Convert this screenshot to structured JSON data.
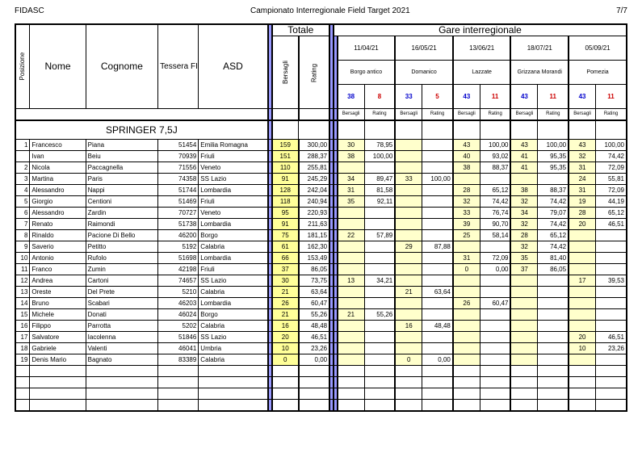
{
  "header": {
    "left": "FIDASC",
    "center": "Campionato Interregionale Field Target 2021",
    "right": "7/7"
  },
  "cols": {
    "pos": "Posizione",
    "nome": "Nome",
    "cognome": "Cognome",
    "tessera": "Tessera FIDASC",
    "asd": "ASD",
    "totale": "Totale",
    "gare": "Gare interregionale",
    "bers": "Bersagli",
    "rating": "Rating"
  },
  "events": [
    {
      "date": "11/04/21",
      "loc": "Borgo antico",
      "b": "38",
      "r": "8"
    },
    {
      "date": "16/05/21",
      "loc": "Domanico",
      "b": "33",
      "r": "5"
    },
    {
      "date": "13/06/21",
      "loc": "Lazzate",
      "b": "43",
      "r": "11"
    },
    {
      "date": "18/07/21",
      "loc": "Grizzana Morandi",
      "b": "43",
      "r": "11"
    },
    {
      "date": "05/09/21",
      "loc": "Pomezia",
      "b": "43",
      "r": "11"
    }
  ],
  "section": "SPRINGER 7,5J",
  "rows": [
    {
      "p": "1",
      "n": "Francesco",
      "c": "Piana",
      "t": "51454",
      "a": "Emilia Romagna",
      "tb": "159",
      "tr": "300,00",
      "g": [
        [
          "30",
          "78,95"
        ],
        [
          "",
          ""
        ],
        [
          "43",
          "100,00"
        ],
        [
          "43",
          "100,00"
        ],
        [
          "43",
          "100,00"
        ]
      ]
    },
    {
      "p": "",
      "n": "Ivan",
      "c": "Beiu",
      "t": "70939",
      "a": "Friuli",
      "tb": "151",
      "tr": "288,37",
      "g": [
        [
          "38",
          "100,00"
        ],
        [
          "",
          ""
        ],
        [
          "40",
          "93,02"
        ],
        [
          "41",
          "95,35"
        ],
        [
          "32",
          "74,42"
        ]
      ]
    },
    {
      "p": "2",
      "n": "Nicola",
      "c": "Paccagnella",
      "t": "71556",
      "a": "Veneto",
      "tb": "110",
      "tr": "255,81",
      "g": [
        [
          "",
          ""
        ],
        [
          "",
          ""
        ],
        [
          "38",
          "88,37"
        ],
        [
          "41",
          "95,35"
        ],
        [
          "31",
          "72,09"
        ]
      ]
    },
    {
      "p": "3",
      "n": "Martina",
      "c": "Paris",
      "t": "74358",
      "a": "SS Lazio",
      "tb": "91",
      "tr": "245,29",
      "g": [
        [
          "34",
          "89,47"
        ],
        [
          "33",
          "100,00"
        ],
        [
          "",
          ""
        ],
        [
          "",
          ""
        ],
        [
          "24",
          "55,81"
        ]
      ]
    },
    {
      "p": "4",
      "n": "Alessandro",
      "c": "Nappi",
      "t": "51744",
      "a": "Lombardia",
      "tb": "128",
      "tr": "242,04",
      "g": [
        [
          "31",
          "81,58"
        ],
        [
          "",
          ""
        ],
        [
          "28",
          "65,12"
        ],
        [
          "38",
          "88,37"
        ],
        [
          "31",
          "72,09"
        ]
      ]
    },
    {
      "p": "5",
      "n": "Giorgio",
      "c": "Centioni",
      "t": "51469",
      "a": "Friuli",
      "tb": "118",
      "tr": "240,94",
      "g": [
        [
          "35",
          "92,11"
        ],
        [
          "",
          ""
        ],
        [
          "32",
          "74,42"
        ],
        [
          "32",
          "74,42"
        ],
        [
          "19",
          "44,19"
        ]
      ]
    },
    {
      "p": "6",
      "n": "Alessandro",
      "c": "Zardin",
      "t": "70727",
      "a": "Veneto",
      "tb": "95",
      "tr": "220,93",
      "g": [
        [
          "",
          ""
        ],
        [
          "",
          ""
        ],
        [
          "33",
          "76,74"
        ],
        [
          "34",
          "79,07"
        ],
        [
          "28",
          "65,12"
        ]
      ]
    },
    {
      "p": "7",
      "n": "Renato",
      "c": "Raimondi",
      "t": "51738",
      "a": "Lombardia",
      "tb": "91",
      "tr": "211,63",
      "g": [
        [
          "",
          ""
        ],
        [
          "",
          ""
        ],
        [
          "39",
          "90,70"
        ],
        [
          "32",
          "74,42"
        ],
        [
          "20",
          "46,51"
        ]
      ]
    },
    {
      "p": "8",
      "n": "Rinaldo",
      "c": "Pacione Di Bello",
      "t": "46200",
      "a": "Borgo",
      "tb": "75",
      "tr": "181,15",
      "g": [
        [
          "22",
          "57,89"
        ],
        [
          "",
          ""
        ],
        [
          "25",
          "58,14"
        ],
        [
          "28",
          "65,12"
        ],
        [
          "",
          ""
        ]
      ]
    },
    {
      "p": "9",
      "n": "Saverio",
      "c": "Petitto",
      "t": "5192",
      "a": "Calabria",
      "tb": "61",
      "tr": "162,30",
      "g": [
        [
          "",
          ""
        ],
        [
          "29",
          "87,88"
        ],
        [
          "",
          ""
        ],
        [
          "32",
          "74,42"
        ],
        [
          "",
          ""
        ]
      ]
    },
    {
      "p": "10",
      "n": "Antonio",
      "c": "Rufolo",
      "t": "51698",
      "a": "Lombardia",
      "tb": "66",
      "tr": "153,49",
      "g": [
        [
          "",
          ""
        ],
        [
          "",
          ""
        ],
        [
          "31",
          "72,09"
        ],
        [
          "35",
          "81,40"
        ],
        [
          "",
          ""
        ]
      ]
    },
    {
      "p": "11",
      "n": "Franco",
      "c": "Zumin",
      "t": "42198",
      "a": "Friuli",
      "tb": "37",
      "tr": "86,05",
      "g": [
        [
          "",
          ""
        ],
        [
          "",
          ""
        ],
        [
          "0",
          "0,00"
        ],
        [
          "37",
          "86,05"
        ],
        [
          "",
          ""
        ]
      ]
    },
    {
      "p": "12",
      "n": "Andrea",
      "c": "Cartoni",
      "t": "74657",
      "a": "SS Lazio",
      "tb": "30",
      "tr": "73,75",
      "g": [
        [
          "13",
          "34,21"
        ],
        [
          "",
          ""
        ],
        [
          "",
          ""
        ],
        [
          "",
          ""
        ],
        [
          "17",
          "39,53"
        ]
      ]
    },
    {
      "p": "13",
      "n": "Oreste",
      "c": "Del Prete",
      "t": "5210",
      "a": "Calabria",
      "tb": "21",
      "tr": "63,64",
      "g": [
        [
          "",
          ""
        ],
        [
          "21",
          "63,64"
        ],
        [
          "",
          ""
        ],
        [
          "",
          ""
        ],
        [
          "",
          ""
        ]
      ]
    },
    {
      "p": "14",
      "n": "Bruno",
      "c": "Scabari",
      "t": "46203",
      "a": "Lombardia",
      "tb": "26",
      "tr": "60,47",
      "g": [
        [
          "",
          ""
        ],
        [
          "",
          ""
        ],
        [
          "26",
          "60,47"
        ],
        [
          "",
          ""
        ],
        [
          "",
          ""
        ]
      ]
    },
    {
      "p": "15",
      "n": "Michele",
      "c": "Donati",
      "t": "46024",
      "a": "Borgo",
      "tb": "21",
      "tr": "55,26",
      "g": [
        [
          "21",
          "55,26"
        ],
        [
          "",
          ""
        ],
        [
          "",
          ""
        ],
        [
          "",
          ""
        ],
        [
          "",
          ""
        ]
      ]
    },
    {
      "p": "16",
      "n": "Filippo",
      "c": "Parrotta",
      "t": "5202",
      "a": "Calabria",
      "tb": "16",
      "tr": "48,48",
      "g": [
        [
          "",
          ""
        ],
        [
          "16",
          "48,48"
        ],
        [
          "",
          ""
        ],
        [
          "",
          ""
        ],
        [
          "",
          ""
        ]
      ]
    },
    {
      "p": "17",
      "n": "Salvatore",
      "c": "Iacolenna",
      "t": "51846",
      "a": "SS Lazio",
      "tb": "20",
      "tr": "46,51",
      "g": [
        [
          "",
          ""
        ],
        [
          "",
          ""
        ],
        [
          "",
          ""
        ],
        [
          "",
          ""
        ],
        [
          "20",
          "46,51"
        ]
      ]
    },
    {
      "p": "18",
      "n": "Gabriele",
      "c": "Valenti",
      "t": "46041",
      "a": "Umbria",
      "tb": "10",
      "tr": "23,26",
      "g": [
        [
          "",
          ""
        ],
        [
          "",
          ""
        ],
        [
          "",
          ""
        ],
        [
          "",
          ""
        ],
        [
          "10",
          "23,26"
        ]
      ]
    },
    {
      "p": "19",
      "n": "Denis Mario",
      "c": "Bagnato",
      "t": "83389",
      "a": "Calabria",
      "tb": "0",
      "tr": "0,00",
      "g": [
        [
          "",
          ""
        ],
        [
          "0",
          "0,00"
        ],
        [
          "",
          ""
        ],
        [
          "",
          ""
        ],
        [
          "",
          ""
        ]
      ]
    }
  ],
  "sub": {
    "b": "Bersagli",
    "r": "Rating"
  }
}
